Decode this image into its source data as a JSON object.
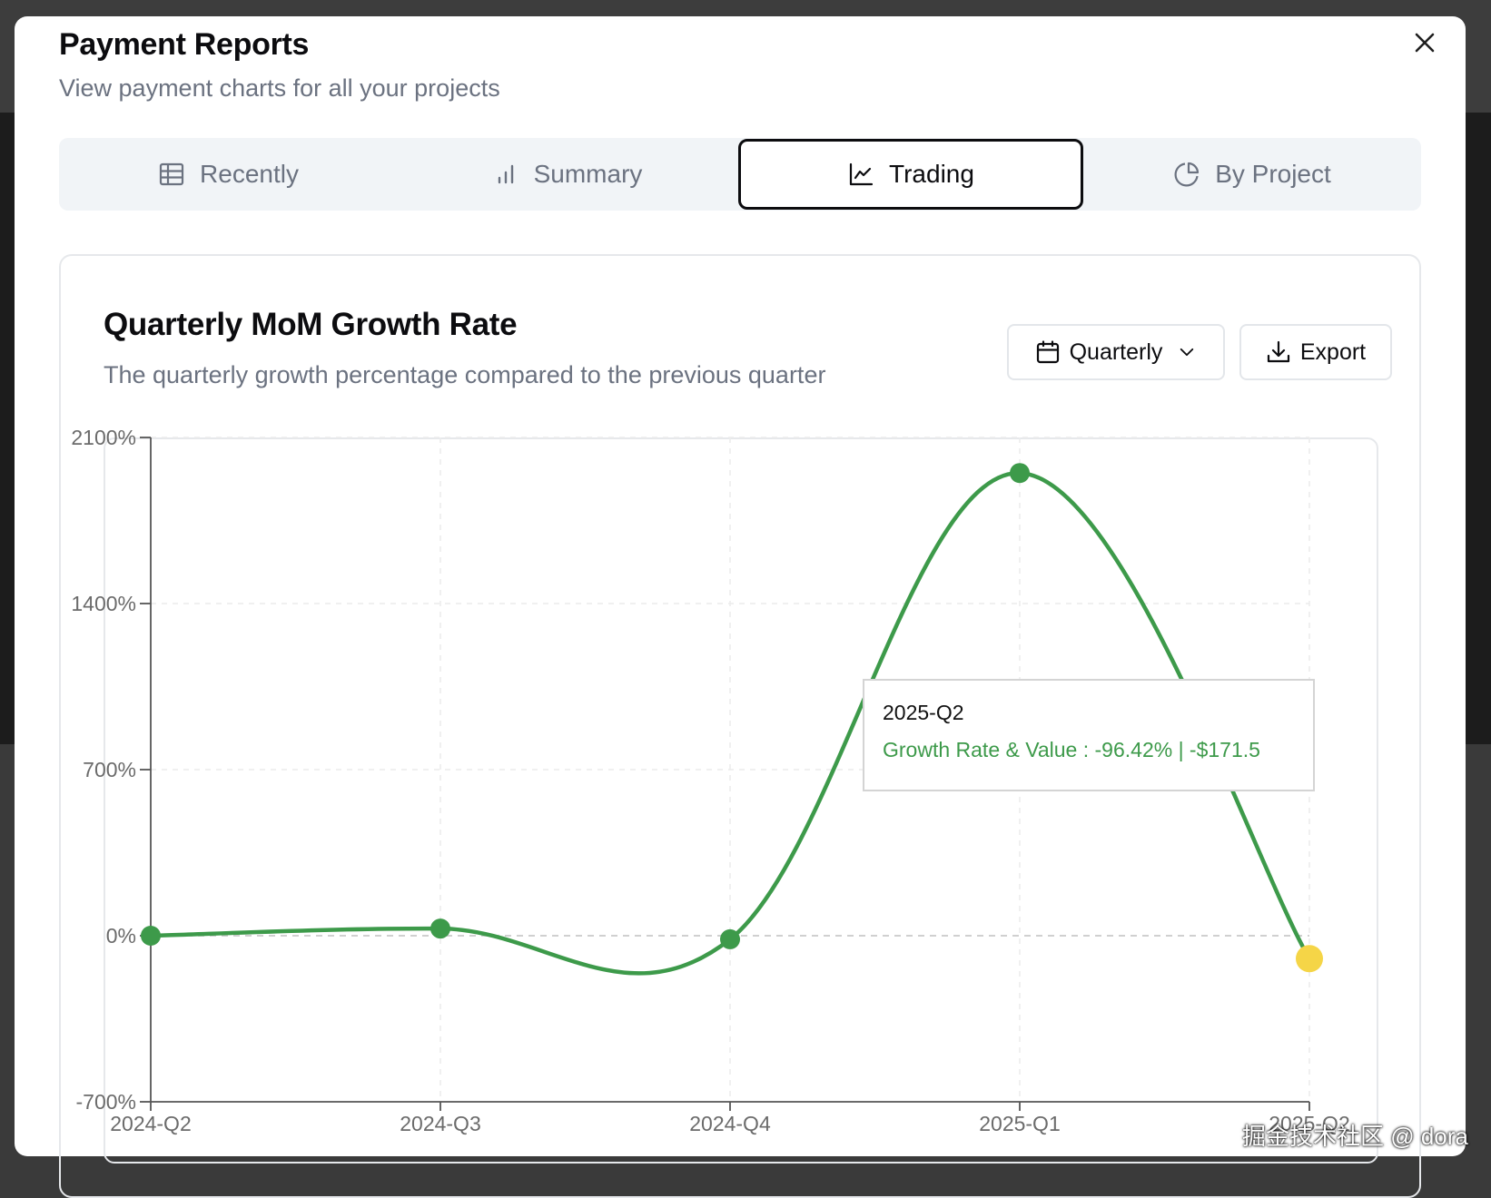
{
  "modal": {
    "title": "Payment Reports",
    "subtitle": "View payment charts for all your projects",
    "close_icon": "close-icon"
  },
  "tabs": [
    {
      "label": "Recently",
      "icon": "table-icon",
      "active": false
    },
    {
      "label": "Summary",
      "icon": "bar-chart-icon",
      "active": false
    },
    {
      "label": "Trading",
      "icon": "line-chart-icon",
      "active": true
    },
    {
      "label": "By Project",
      "icon": "pie-chart-icon",
      "active": false
    }
  ],
  "card": {
    "title": "Quarterly MoM Growth Rate",
    "description": "The quarterly growth percentage compared to the previous quarter",
    "period_select": {
      "label": "Quarterly",
      "icon": "calendar-icon",
      "chevron": "chevron-down-icon"
    },
    "export_button": {
      "label": "Export",
      "icon": "download-icon"
    }
  },
  "tooltip": {
    "label": "2025-Q2",
    "text": "Growth Rate & Value : -96.42% | -$171.5"
  },
  "chart_data": {
    "type": "line",
    "categories": [
      "2024-Q2",
      "2024-Q3",
      "2024-Q4",
      "2025-Q1",
      "2025-Q2"
    ],
    "series": [
      {
        "values": [
          0,
          30,
          -15,
          1950,
          -96.42
        ],
        "color": "#3d9a4a"
      }
    ],
    "highlighted_point": {
      "category": "2025-Q2",
      "color": "#f5d547"
    },
    "ylim": [
      -700,
      2100
    ],
    "yticks": [
      -700,
      0,
      700,
      1400,
      2100
    ],
    "ytick_labels": [
      "-700%",
      "0%",
      "700%",
      "1400%",
      "2100%"
    ],
    "grid": true,
    "reference_line": 0
  },
  "watermark": "掘金技术社区 @ dora",
  "colors": {
    "accent": "#3d9a4a",
    "highlight": "#f5d547",
    "muted_text": "#6b7280",
    "border": "#e6e8eb"
  }
}
